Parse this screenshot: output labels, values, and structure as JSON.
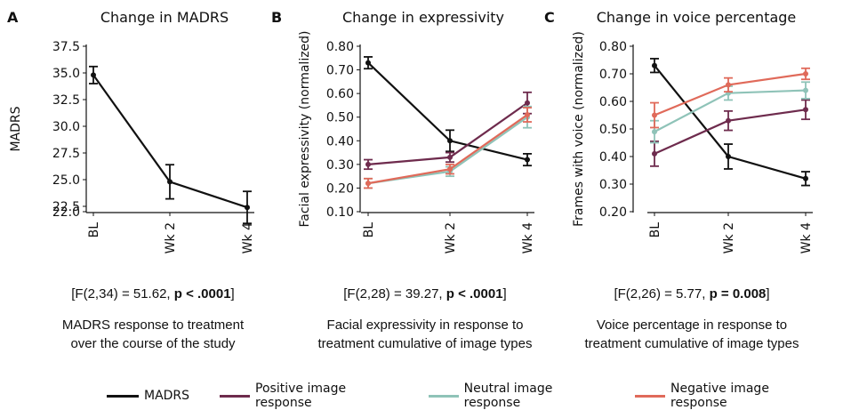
{
  "chart_data": [
    {
      "type": "line",
      "panel_label": "A",
      "title": "Change in MADRS",
      "ylabel": "MADRS",
      "xlabel": "",
      "categories": [
        "BL",
        "Wk 2",
        "Wk 4"
      ],
      "ylim": [
        22.0,
        37.5
      ],
      "yticks": [
        "22.0",
        "22.5",
        "25.0",
        "27.5",
        "30.0",
        "32.5",
        "35.0",
        "37.5"
      ],
      "ytick_values": [
        22.0,
        22.5,
        25.0,
        27.5,
        30.0,
        32.5,
        35.0,
        37.5
      ],
      "series": [
        {
          "name": "MADRS",
          "color": "#111111",
          "values": [
            34.8,
            24.8,
            22.4
          ],
          "errors": [
            0.8,
            1.6,
            1.5
          ]
        }
      ],
      "stats_prefix": "[F(2,34) = 51.62, ",
      "stats_bold": "p < .0001",
      "stats_suffix": "]",
      "caption_line1": "MADRS response to treatment",
      "caption_line2": "over the course of the study"
    },
    {
      "type": "line",
      "panel_label": "B",
      "title": "Change in expressivity",
      "ylabel": "Facial expressivity (normalized)",
      "xlabel": "",
      "categories": [
        "BL",
        "Wk 2",
        "Wk 4"
      ],
      "ylim": [
        0.1,
        0.8
      ],
      "yticks": [
        "0.10",
        "0.20",
        "0.30",
        "0.40",
        "0.50",
        "0.60",
        "0.70",
        "0.80"
      ],
      "ytick_values": [
        0.1,
        0.2,
        0.3,
        0.4,
        0.5,
        0.6,
        0.7,
        0.8
      ],
      "series": [
        {
          "name": "MADRS",
          "color": "#111111",
          "values": [
            0.73,
            0.4,
            0.32
          ],
          "errors": [
            0.025,
            0.045,
            0.025
          ]
        },
        {
          "name": "Positive image response",
          "color": "#6e2b4d",
          "values": [
            0.3,
            0.33,
            0.56
          ],
          "errors": [
            0.02,
            0.02,
            0.045
          ]
        },
        {
          "name": "Neutral image response",
          "color": "#8fc3b8",
          "values": [
            0.22,
            0.27,
            0.5
          ],
          "errors": [
            0.02,
            0.02,
            0.045
          ]
        },
        {
          "name": "Negative image response",
          "color": "#e06a5a",
          "values": [
            0.22,
            0.28,
            0.51
          ],
          "errors": [
            0.02,
            0.02,
            0.03
          ]
        }
      ],
      "stats_prefix": "[F(2,28) = 39.27, ",
      "stats_bold": "p < .0001",
      "stats_suffix": "]",
      "caption_line1": "Facial expressivity in response to",
      "caption_line2": "treatment cumulative of image types"
    },
    {
      "type": "line",
      "panel_label": "C",
      "title": "Change in voice percentage",
      "ylabel": "Frames with voice (normalized)",
      "xlabel": "",
      "categories": [
        "BL",
        "Wk 2",
        "Wk 4"
      ],
      "ylim": [
        0.2,
        0.8
      ],
      "yticks": [
        "0.20",
        "0.30",
        "0.40",
        "0.50",
        "0.60",
        "0.70",
        "0.80"
      ],
      "ytick_values": [
        0.2,
        0.3,
        0.4,
        0.5,
        0.6,
        0.7,
        0.8
      ],
      "series": [
        {
          "name": "MADRS",
          "color": "#111111",
          "values": [
            0.73,
            0.4,
            0.32
          ],
          "errors": [
            0.025,
            0.045,
            0.025
          ]
        },
        {
          "name": "Positive image response",
          "color": "#6e2b4d",
          "values": [
            0.41,
            0.53,
            0.57
          ],
          "errors": [
            0.045,
            0.035,
            0.035
          ]
        },
        {
          "name": "Neutral image response",
          "color": "#8fc3b8",
          "values": [
            0.49,
            0.63,
            0.64
          ],
          "errors": [
            0.04,
            0.025,
            0.03
          ]
        },
        {
          "name": "Negative image response",
          "color": "#e06a5a",
          "values": [
            0.55,
            0.66,
            0.7
          ],
          "errors": [
            0.045,
            0.025,
            0.02
          ]
        }
      ],
      "stats_prefix": "[F(2,26) = 5.77, ",
      "stats_bold": "p = 0.008",
      "stats_suffix": "]",
      "caption_line1": "Voice percentage in response to",
      "caption_line2": "treatment cumulative of image types"
    }
  ],
  "legend": [
    {
      "label": "MADRS",
      "color": "#111111"
    },
    {
      "label": "Positive image response",
      "color": "#6e2b4d"
    },
    {
      "label": "Neutral image response",
      "color": "#8fc3b8"
    },
    {
      "label": "Negative image response",
      "color": "#e06a5a"
    }
  ]
}
